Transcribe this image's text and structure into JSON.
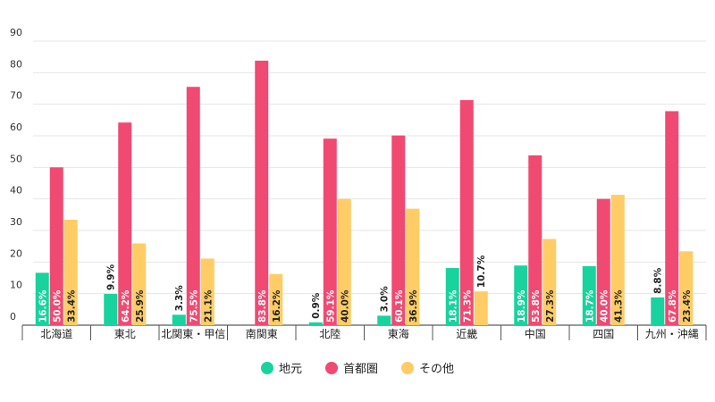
{
  "chart_data": {
    "type": "bar",
    "categories": [
      "北海道",
      "東北",
      "北関東・甲信",
      "南関東",
      "北陸",
      "東海",
      "近畿",
      "中国",
      "四国",
      "九州・沖縄"
    ],
    "series": [
      {
        "name": "地元",
        "color": "#18d39e",
        "values": [
          16.6,
          9.9,
          3.3,
          0.0,
          0.9,
          3.0,
          18.1,
          18.9,
          18.7,
          8.8
        ],
        "labels": [
          "16.6%",
          "9.9%",
          "3.3%",
          "",
          "0.9%",
          "3.0%",
          "18.1%",
          "18.9%",
          "18.7%",
          "8.8%"
        ]
      },
      {
        "name": "首都圏",
        "color": "#f04a72",
        "values": [
          50.0,
          64.2,
          75.5,
          83.8,
          59.1,
          60.1,
          71.3,
          53.8,
          40.0,
          67.8
        ],
        "labels": [
          "50.0%",
          "64.2%",
          "75.5%",
          "83.8%",
          "59.1%",
          "60.1%",
          "71.3%",
          "53.8%",
          "40.0%",
          "67.8%"
        ]
      },
      {
        "name": "その他",
        "color": "#ffcc66",
        "values": [
          33.4,
          25.9,
          21.1,
          16.2,
          40.0,
          36.9,
          10.7,
          27.3,
          41.3,
          23.4
        ],
        "labels": [
          "33.4%",
          "25.9%",
          "21.1%",
          "16.2%",
          "40.0%",
          "36.9%",
          "10.7%",
          "27.3%",
          "41.3%",
          "23.4%"
        ]
      }
    ],
    "ylim": [
      0,
      90
    ],
    "yticks": [
      0,
      10,
      20,
      30,
      40,
      50,
      60,
      70,
      80,
      90
    ],
    "grid": true,
    "legend_position": "bottom-center"
  },
  "legend": [
    {
      "label": "地元",
      "color": "#18d39e"
    },
    {
      "label": "首都圏",
      "color": "#f04a72"
    },
    {
      "label": "その他",
      "color": "#ffcc66"
    }
  ]
}
